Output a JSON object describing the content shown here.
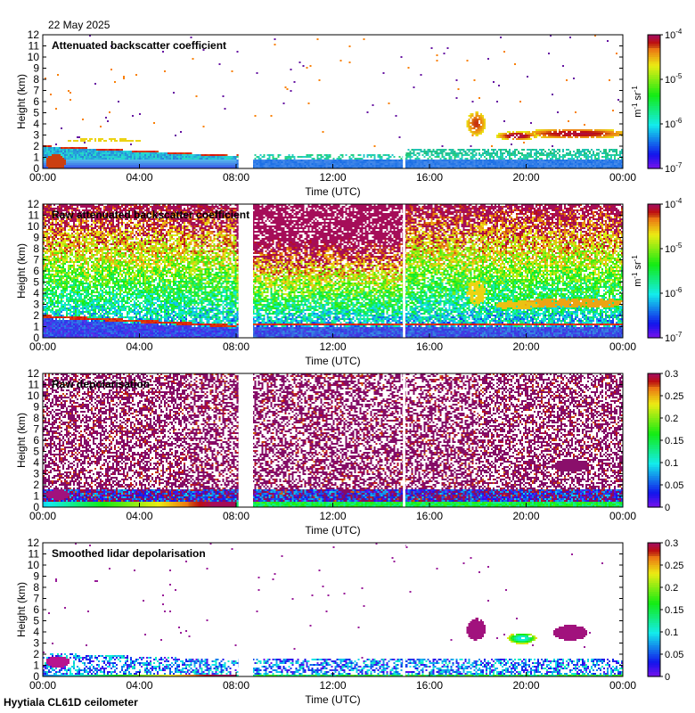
{
  "header": {
    "date": "22 May 2025"
  },
  "footer": {
    "site": "Hyytiala CL61D ceilometer"
  },
  "colors": {
    "gap": "#ffffff",
    "axis": "#000000"
  },
  "chart_data": [
    {
      "type": "heatmap",
      "title": "Attenuated backscatter coefficient",
      "xlabel": "Time (UTC)",
      "ylabel": "Height (km)",
      "x_ticks": [
        "00:00",
        "04:00",
        "08:00",
        "12:00",
        "16:00",
        "20:00",
        "00:00"
      ],
      "y_ticks": [
        "0",
        "1",
        "2",
        "3",
        "4",
        "5",
        "6",
        "7",
        "8",
        "9",
        "10",
        "11",
        "12"
      ],
      "xlim_hours": [
        0,
        24
      ],
      "ylim_km": [
        0,
        12
      ],
      "data_gaps_hours": [
        [
          8.1,
          8.7
        ],
        [
          14.9,
          15.0
        ]
      ],
      "colorbar": {
        "scale": "log",
        "ticks": [
          {
            "base": "10",
            "exp": "-4"
          },
          {
            "base": "10",
            "exp": "-5"
          },
          {
            "base": "10",
            "exp": "-6"
          },
          {
            "base": "10",
            "exp": "-7"
          }
        ],
        "unit_m": "m",
        "unit_m_exp": "-1",
        "unit_sr": "sr",
        "unit_sr_exp": "-1"
      }
    },
    {
      "type": "heatmap",
      "title": "Raw attenuated backscatter coefficient",
      "xlabel": "Time (UTC)",
      "ylabel": "Height (km)",
      "x_ticks": [
        "00:00",
        "04:00",
        "08:00",
        "12:00",
        "16:00",
        "20:00",
        "00:00"
      ],
      "y_ticks": [
        "0",
        "1",
        "2",
        "3",
        "4",
        "5",
        "6",
        "7",
        "8",
        "9",
        "10",
        "11",
        "12"
      ],
      "xlim_hours": [
        0,
        24
      ],
      "ylim_km": [
        0,
        12
      ],
      "data_gaps_hours": [
        [
          8.1,
          8.7
        ],
        [
          14.9,
          15.0
        ]
      ],
      "colorbar": {
        "scale": "log",
        "ticks": [
          {
            "base": "10",
            "exp": "-4"
          },
          {
            "base": "10",
            "exp": "-5"
          },
          {
            "base": "10",
            "exp": "-6"
          },
          {
            "base": "10",
            "exp": "-7"
          }
        ],
        "unit_m": "m",
        "unit_m_exp": "-1",
        "unit_sr": "sr",
        "unit_sr_exp": "-1"
      }
    },
    {
      "type": "heatmap",
      "title": "Raw depolarisation",
      "xlabel": "Time (UTC)",
      "ylabel": "Height (km)",
      "x_ticks": [
        "00:00",
        "04:00",
        "08:00",
        "12:00",
        "16:00",
        "20:00",
        "00:00"
      ],
      "y_ticks": [
        "0",
        "1",
        "2",
        "3",
        "4",
        "5",
        "6",
        "7",
        "8",
        "9",
        "10",
        "11",
        "12"
      ],
      "xlim_hours": [
        0,
        24
      ],
      "ylim_km": [
        0,
        12
      ],
      "data_gaps_hours": [
        [
          8.1,
          8.7
        ],
        [
          14.9,
          15.0
        ]
      ],
      "colorbar": {
        "scale": "linear",
        "ticks": [
          "0.3",
          "0.25",
          "0.2",
          "0.15",
          "0.1",
          "0.05",
          "0"
        ],
        "range": [
          0,
          0.3
        ]
      }
    },
    {
      "type": "heatmap",
      "title": "Smoothed lidar depolarisation",
      "xlabel": "Time (UTC)",
      "ylabel": "Height (km)",
      "x_ticks": [
        "00:00",
        "04:00",
        "08:00",
        "12:00",
        "16:00",
        "20:00",
        "00:00"
      ],
      "y_ticks": [
        "0",
        "1",
        "2",
        "3",
        "4",
        "5",
        "6",
        "7",
        "8",
        "9",
        "10",
        "11",
        "12"
      ],
      "xlim_hours": [
        0,
        24
      ],
      "ylim_km": [
        0,
        12
      ],
      "data_gaps_hours": [
        [
          8.1,
          8.7
        ],
        [
          14.9,
          15.0
        ]
      ],
      "colorbar": {
        "scale": "linear",
        "ticks": [
          "0.3",
          "0.25",
          "0.2",
          "0.15",
          "0.1",
          "0.05",
          "0"
        ],
        "range": [
          0,
          0.3
        ]
      }
    }
  ]
}
